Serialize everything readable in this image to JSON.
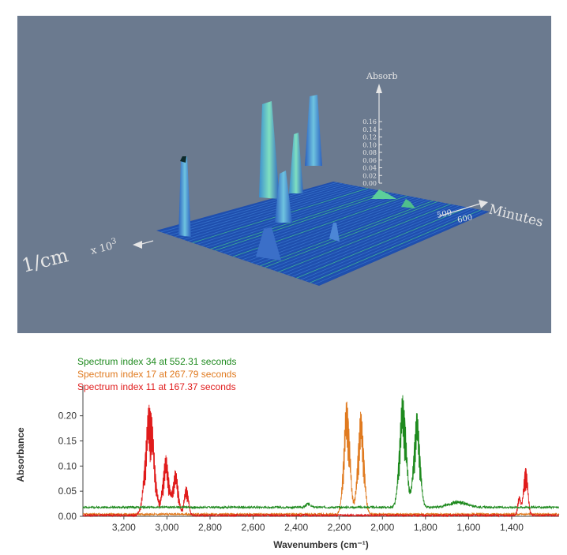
{
  "surface_chart": {
    "type": "surface3d",
    "z_axis_label": "Absorb",
    "z_ticks": [
      "0.00",
      "0.02",
      "0.04",
      "0.06",
      "0.08",
      "0.10",
      "0.12",
      "0.14",
      "0.16"
    ],
    "time_axis_label": "Minutes",
    "time_ticks": [
      "500",
      "600"
    ],
    "wavenumber_axis_label": "1/cm",
    "wavenumber_axis_multiplier": "x 10",
    "wavenumber_axis_exponent": "3",
    "colors": {
      "background": "#6b7a8f",
      "surface": "#1f4fae",
      "peak": "#5ab3d6",
      "ridge": "#66e0a0"
    }
  },
  "chart_data": {
    "type": "line",
    "xlabel": "Wavenumbers (cm⁻¹)",
    "ylabel": "Absorbance",
    "x_reversed": true,
    "xlim": [
      3390,
      1180
    ],
    "ylim": [
      0,
      0.245
    ],
    "x_ticks": [
      3200,
      3000,
      2800,
      2600,
      2400,
      2200,
      2000,
      1800,
      1600,
      1400
    ],
    "x_tick_labels": [
      "3,200",
      "3,000",
      "2,800",
      "2,600",
      "2,400",
      "2,200",
      "2,000",
      "1,800",
      "1,600",
      "1,400"
    ],
    "y_ticks": [
      0,
      0.05,
      0.1,
      0.15,
      0.2
    ],
    "y_tick_labels": [
      "0.00",
      "0.05",
      "0.10",
      "0.15",
      "0.20"
    ],
    "legend_position": "top-left",
    "series": [
      {
        "name": "Spectrum index 34 at 552.31 seconds",
        "color": "#1e8a1e",
        "baseline": 0.018,
        "peaks": [
          [
            1905,
            0.225,
            22
          ],
          [
            1840,
            0.19,
            20
          ],
          [
            2345,
            0.008,
            15
          ],
          [
            1650,
            0.012,
            60
          ]
        ]
      },
      {
        "name": "Spectrum index 17 at 267.79 seconds",
        "color": "#e07a1f",
        "baseline": 0.004,
        "peaks": [
          [
            2165,
            0.228,
            20
          ],
          [
            2100,
            0.205,
            20
          ]
        ]
      },
      {
        "name": "Spectrum index 11 at 167.37 seconds",
        "color": "#e01b1b",
        "baseline": 0.002,
        "peaks": [
          [
            3080,
            0.225,
            28
          ],
          [
            3005,
            0.12,
            20
          ],
          [
            2960,
            0.09,
            18
          ],
          [
            2910,
            0.06,
            14
          ],
          [
            1335,
            0.1,
            14
          ],
          [
            1365,
            0.04,
            10
          ]
        ]
      }
    ]
  }
}
